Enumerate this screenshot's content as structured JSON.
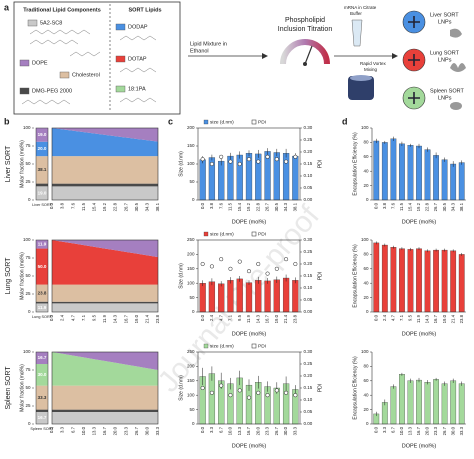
{
  "watermark": "Journal Pre-proof",
  "panel_a": {
    "label": "a",
    "traditional_title": "Traditional Lipid Components",
    "components": [
      "5A2-SC8",
      "DOPE",
      "Cholesterol",
      "DMG-PEG 2000"
    ],
    "sort_title": "SORT Lipids",
    "sort_lipids": [
      "DODAP",
      "DOTAP",
      "18:1PA"
    ],
    "lipid_mixture": [
      "Lipid Mixture in",
      "Ethanol"
    ],
    "titration": [
      "Phospholipid",
      "Inclusion Titration"
    ],
    "mrna": [
      "mRNA in Citrate",
      "Buffer"
    ],
    "vortex": [
      "Rapid Vortex",
      "Mixing"
    ],
    "lnps": [
      [
        "Liver SORT",
        "LNPs"
      ],
      [
        "Lung SORT",
        "LNPs"
      ],
      [
        "Spleen SORT",
        "LNPs"
      ]
    ]
  },
  "chart_data": [
    {
      "type": "area",
      "panel": "b",
      "row_label": "Liver SORT",
      "ylabel": "Molar fraction (mol%)",
      "categories": [
        "0.0",
        "3.8",
        "7.6",
        "11.5",
        "15.4",
        "19.2",
        "22.8",
        "26.7",
        "30.5",
        "34.3",
        "38.1"
      ],
      "ylim": [
        0,
        100
      ],
      "yticks": [
        0,
        25,
        50,
        75,
        100
      ],
      "reference": {
        "label": "Liver SORT",
        "values": [
          19.0,
          3.8,
          38.1,
          20.0,
          19.0
        ],
        "value_labels": [
          "19.0",
          null,
          "38.1",
          "20.0",
          "19.0"
        ]
      },
      "series": [
        {
          "color": "#c9c9c9",
          "values": [
            19.0,
            19.0,
            19.0,
            19.0,
            19.0,
            19.0,
            19.0,
            19.0,
            19.0,
            19.0,
            19.0
          ]
        },
        {
          "color": "#4a4a4a",
          "values": [
            3.8,
            3.8,
            3.8,
            3.8,
            3.8,
            3.8,
            3.8,
            3.8,
            3.8,
            3.8,
            3.8
          ]
        },
        {
          "color": "#dcbfa2",
          "values": [
            38.1,
            38.1,
            38.1,
            38.1,
            38.1,
            38.1,
            38.1,
            38.1,
            38.1,
            38.1,
            38.1
          ]
        },
        {
          "color": "#4a90e2",
          "values": [
            39.1,
            37.2,
            35.3,
            33.4,
            31.5,
            29.6,
            27.7,
            25.8,
            23.9,
            22.0,
            20.1
          ]
        },
        {
          "color": "#a57fc0",
          "values": [
            0,
            1.9,
            3.8,
            5.7,
            7.6,
            9.5,
            11.4,
            13.3,
            15.2,
            17.1,
            19.0
          ]
        }
      ]
    },
    {
      "type": "bar_dual",
      "panel": "c",
      "ylabel": "Size (d.nm)",
      "y2label": "PDI",
      "xlabel": "DOPE (mol%)",
      "categories": [
        "0.0",
        "3.8",
        "7.6",
        "11.5",
        "15.4",
        "19.2",
        "22.8",
        "26.7",
        "30.5",
        "34.3",
        "38.1"
      ],
      "ylim": [
        0,
        200
      ],
      "yticks": [
        0,
        50,
        100,
        150,
        200
      ],
      "y2lim": [
        0,
        0.3
      ],
      "y2ticks": [
        {
          "value": 0,
          "label": "0.00"
        },
        0.05,
        {
          "value": 0.1,
          "label": "0.10"
        },
        0.15,
        {
          "value": 0.2,
          "label": "0.20"
        },
        0.25,
        {
          "value": 0.3,
          "label": "0.30"
        }
      ],
      "series": [
        {
          "name": "size (d.nm)",
          "color": "#4a90e2",
          "values": [
            112,
            118,
            108,
            122,
            125,
            130,
            128,
            135,
            132,
            130,
            122
          ],
          "errors": [
            10,
            8,
            12,
            9,
            10,
            8,
            11,
            9,
            10,
            12,
            8
          ]
        },
        {
          "name": "PDI",
          "axis": "y2",
          "color": "#ffffff",
          "values": [
            0.17,
            0.15,
            0.18,
            0.16,
            0.15,
            0.17,
            0.16,
            0.18,
            0.17,
            0.16,
            0.18
          ]
        }
      ]
    },
    {
      "type": "bar",
      "panel": "d",
      "ylabel": "Encapsulation Efficiency (%)",
      "xlabel": "DOPE (mol%)",
      "categories": [
        "0.0",
        "3.8",
        "7.6",
        "11.5",
        "15.4",
        "19.2",
        "22.8",
        "26.7",
        "30.5",
        "34.3",
        "38.1"
      ],
      "ylim": [
        0,
        100
      ],
      "yticks": [
        0,
        20,
        40,
        60,
        80,
        100
      ],
      "color": "#4a90e2",
      "values": [
        82,
        80,
        85,
        78,
        76,
        75,
        70,
        62,
        56,
        50,
        52
      ],
      "errors": [
        3,
        2,
        3,
        3,
        2,
        3,
        3,
        4,
        3,
        4,
        3
      ]
    },
    {
      "type": "area",
      "row_label": "Lung SORT",
      "ylabel": "Molar fraction (mol%)",
      "categories": [
        "0.0",
        "2.4",
        "4.7",
        "7.1",
        "9.5",
        "11.9",
        "14.3",
        "16.7",
        "19.0",
        "21.4",
        "23.8"
      ],
      "ylim": [
        0,
        100
      ],
      "yticks": [
        0,
        25,
        50,
        75,
        100
      ],
      "reference": {
        "label": "Lung SORT",
        "values": [
          11.9,
          2.4,
          23.8,
          50.0,
          11.9
        ],
        "value_labels": [
          "11.9",
          null,
          "23.8",
          "50.0",
          "11.9"
        ]
      },
      "series": [
        {
          "color": "#c9c9c9",
          "values": [
            11.9,
            11.9,
            11.9,
            11.9,
            11.9,
            11.9,
            11.9,
            11.9,
            11.9,
            11.9,
            11.9
          ]
        },
        {
          "color": "#4a4a4a",
          "values": [
            2.4,
            2.4,
            2.4,
            2.4,
            2.4,
            2.4,
            2.4,
            2.4,
            2.4,
            2.4,
            2.4
          ]
        },
        {
          "color": "#dcbfa2",
          "values": [
            23.8,
            23.8,
            23.8,
            23.8,
            23.8,
            23.8,
            23.8,
            23.8,
            23.8,
            23.8,
            23.8
          ]
        },
        {
          "color": "#e8403a",
          "values": [
            61.9,
            59.5,
            57.2,
            54.8,
            52.4,
            50.0,
            47.6,
            45.2,
            42.9,
            40.5,
            38.1
          ]
        },
        {
          "color": "#a57fc0",
          "values": [
            0,
            2.4,
            4.7,
            7.1,
            9.5,
            11.9,
            14.3,
            16.7,
            19.0,
            21.4,
            23.8
          ]
        }
      ]
    },
    {
      "type": "bar_dual",
      "ylabel": "Size (d.nm)",
      "y2label": "PDI",
      "xlabel": "DOPE (mol%)",
      "categories": [
        "0.0",
        "2.4",
        "4.7",
        "7.1",
        "9.5",
        "11.9",
        "14.3",
        "16.7",
        "19.0",
        "21.4",
        "23.8"
      ],
      "ylim": [
        0,
        250
      ],
      "yticks": [
        0,
        50,
        100,
        150,
        200,
        250
      ],
      "y2lim": [
        0,
        0.3
      ],
      "y2ticks": [
        {
          "value": 0,
          "label": "0.00"
        },
        0.05,
        {
          "value": 0.1,
          "label": "0.10"
        },
        0.15,
        {
          "value": 0.2,
          "label": "0.20"
        },
        0.25,
        {
          "value": 0.3,
          "label": "0.30"
        }
      ],
      "series": [
        {
          "name": "size (d.nm)",
          "color": "#e8403a",
          "values": [
            100,
            105,
            98,
            110,
            115,
            102,
            110,
            108,
            112,
            118,
            110
          ],
          "errors": [
            10,
            12,
            9,
            11,
            10,
            8,
            12,
            10,
            11,
            12,
            10
          ]
        },
        {
          "name": "PDI",
          "axis": "y2",
          "color": "#ffffff",
          "values": [
            0.2,
            0.19,
            0.22,
            0.18,
            0.21,
            0.17,
            0.2,
            0.16,
            0.18,
            0.22,
            0.2
          ]
        }
      ]
    },
    {
      "type": "bar",
      "ylabel": "Encapsulation Efficiency (%)",
      "xlabel": "DOPE (mol%)",
      "categories": [
        "0.0",
        "2.4",
        "4.7",
        "7.1",
        "9.5",
        "11.9",
        "14.3",
        "16.7",
        "19.0",
        "21.4",
        "23.8"
      ],
      "ylim": [
        0,
        100
      ],
      "yticks": [
        0,
        20,
        40,
        60,
        80,
        100
      ],
      "color": "#e8403a",
      "values": [
        96,
        93,
        90,
        88,
        87,
        88,
        85,
        86,
        86,
        85,
        80
      ],
      "errors": [
        2,
        2,
        2,
        2,
        2,
        2,
        2,
        2,
        2,
        2,
        2
      ]
    },
    {
      "type": "area",
      "row_label": "Spleen SORT",
      "ylabel": "Molar fraction (mol%)",
      "categories": [
        "0.0",
        "3.3",
        "6.7",
        "10.0",
        "13.3",
        "16.7",
        "20.0",
        "23.3",
        "26.7",
        "30.0",
        "33.3"
      ],
      "ylim": [
        0,
        100
      ],
      "yticks": [
        0,
        25,
        50,
        75,
        100
      ],
      "reference": {
        "label": "Spleen SORT",
        "values": [
          16.7,
          3.3,
          33.3,
          30.0,
          16.7
        ],
        "value_labels": [
          "16.7",
          null,
          "33.3",
          "30.0",
          "16.7"
        ]
      },
      "series": [
        {
          "color": "#c9c9c9",
          "values": [
            16.7,
            16.7,
            16.7,
            16.7,
            16.7,
            16.7,
            16.7,
            16.7,
            16.7,
            16.7,
            16.7
          ]
        },
        {
          "color": "#4a4a4a",
          "values": [
            3.3,
            3.3,
            3.3,
            3.3,
            3.3,
            3.3,
            3.3,
            3.3,
            3.3,
            3.3,
            3.3
          ]
        },
        {
          "color": "#dcbfa2",
          "values": [
            33.3,
            33.3,
            33.3,
            33.3,
            33.3,
            33.3,
            33.3,
            33.3,
            33.3,
            33.3,
            33.3
          ]
        },
        {
          "color": "#a3d99b",
          "values": [
            46.7,
            44.2,
            41.7,
            39.2,
            36.7,
            34.2,
            31.7,
            29.2,
            26.7,
            24.2,
            21.7
          ]
        },
        {
          "color": "#a57fc0",
          "values": [
            0,
            2.5,
            5.0,
            7.5,
            10.0,
            12.5,
            15.0,
            17.5,
            20.0,
            22.5,
            25.0
          ]
        }
      ]
    },
    {
      "type": "bar_dual",
      "ylabel": "Size (d.nm)",
      "y2label": "PDI",
      "xlabel": "DOPE (mol%)",
      "categories": [
        "0.0",
        "3.3",
        "6.7",
        "10.0",
        "13.3",
        "16.7",
        "20.0",
        "23.3",
        "26.7",
        "30.0",
        "33.3"
      ],
      "ylim": [
        0,
        250
      ],
      "yticks": [
        0,
        50,
        100,
        150,
        200,
        250
      ],
      "y2lim": [
        0,
        0.3
      ],
      "y2ticks": [
        {
          "value": 0,
          "label": "0.00"
        },
        0.05,
        {
          "value": 0.1,
          "label": "0.10"
        },
        0.15,
        {
          "value": 0.2,
          "label": "0.20"
        },
        0.25,
        {
          "value": 0.3,
          "label": "0.30"
        }
      ],
      "series": [
        {
          "name": "size (d.nm)",
          "color": "#a3d99b",
          "values": [
            165,
            175,
            150,
            140,
            160,
            135,
            145,
            130,
            125,
            140,
            120
          ],
          "errors": [
            30,
            25,
            28,
            20,
            25,
            20,
            22,
            18,
            20,
            25,
            15
          ]
        },
        {
          "name": "PDI",
          "axis": "y2",
          "color": "#ffffff",
          "values": [
            0.15,
            0.13,
            0.16,
            0.12,
            0.14,
            0.11,
            0.13,
            0.12,
            0.14,
            0.13,
            0.12
          ]
        }
      ]
    },
    {
      "type": "bar",
      "ylabel": "Encapsulation Efficiency (%)",
      "xlabel": "DOPE (mol%)",
      "categories": [
        "0.0",
        "3.3",
        "6.7",
        "10.0",
        "13.3",
        "16.7",
        "20.0",
        "23.3",
        "26.7",
        "30.0",
        "33.3"
      ],
      "ylim": [
        0,
        100
      ],
      "yticks": [
        0,
        20,
        40,
        60,
        80,
        100
      ],
      "color": "#a3d99b",
      "values": [
        14,
        30,
        52,
        69,
        60,
        61,
        58,
        62,
        56,
        60,
        56
      ],
      "errors": [
        3,
        4,
        3,
        2,
        3,
        3,
        3,
        2,
        3,
        3,
        3
      ]
    }
  ]
}
